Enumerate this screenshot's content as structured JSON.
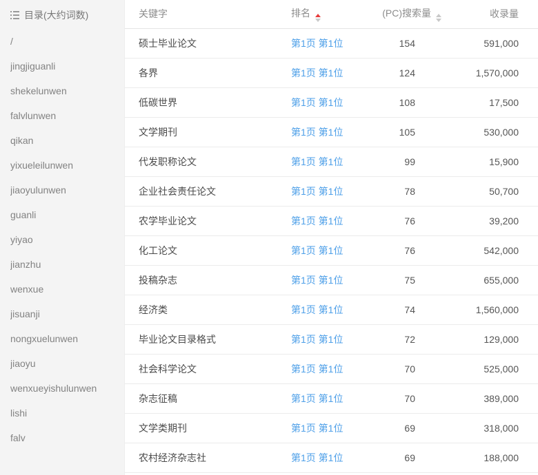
{
  "sidebar": {
    "title": "目录(大约词数)",
    "items": [
      "/",
      "jingjiguanli",
      "shekelunwen",
      "falvlunwen",
      "qikan",
      "yixueleilunwen",
      "jiaoyulunwen",
      "guanli",
      "yiyao",
      "jianzhu",
      "wenxue",
      "jisuanji",
      "nongxuelunwen",
      "jiaoyu",
      "wenxueyishulunwen",
      "lishi",
      "falv"
    ]
  },
  "table": {
    "columns": {
      "keyword": "关键字",
      "rank": "排名",
      "pc_search": "(PC)搜索量",
      "indexed": "收录量"
    },
    "sort": {
      "rank_active": "asc",
      "pc_active": "none"
    },
    "rows": [
      {
        "keyword": "硕士毕业论文",
        "rank": "第1页 第1位",
        "pc": "154",
        "indexed": "591,000"
      },
      {
        "keyword": "各界",
        "rank": "第1页 第1位",
        "pc": "124",
        "indexed": "1,570,000"
      },
      {
        "keyword": "低碳世界",
        "rank": "第1页 第1位",
        "pc": "108",
        "indexed": "17,500"
      },
      {
        "keyword": "文学期刊",
        "rank": "第1页 第1位",
        "pc": "105",
        "indexed": "530,000"
      },
      {
        "keyword": "代发职称论文",
        "rank": "第1页 第1位",
        "pc": "99",
        "indexed": "15,900"
      },
      {
        "keyword": "企业社会责任论文",
        "rank": "第1页 第1位",
        "pc": "78",
        "indexed": "50,700"
      },
      {
        "keyword": "农学毕业论文",
        "rank": "第1页 第1位",
        "pc": "76",
        "indexed": "39,200"
      },
      {
        "keyword": "化工论文",
        "rank": "第1页 第1位",
        "pc": "76",
        "indexed": "542,000"
      },
      {
        "keyword": "投稿杂志",
        "rank": "第1页 第1位",
        "pc": "75",
        "indexed": "655,000"
      },
      {
        "keyword": "经济类",
        "rank": "第1页 第1位",
        "pc": "74",
        "indexed": "1,560,000"
      },
      {
        "keyword": "毕业论文目录格式",
        "rank": "第1页 第1位",
        "pc": "72",
        "indexed": "129,000"
      },
      {
        "keyword": "社会科学论文",
        "rank": "第1页 第1位",
        "pc": "70",
        "indexed": "525,000"
      },
      {
        "keyword": "杂志征稿",
        "rank": "第1页 第1位",
        "pc": "70",
        "indexed": "389,000"
      },
      {
        "keyword": "文学类期刊",
        "rank": "第1页 第1位",
        "pc": "69",
        "indexed": "318,000"
      },
      {
        "keyword": "农村经济杂志社",
        "rank": "第1页 第1位",
        "pc": "69",
        "indexed": "188,000"
      }
    ]
  },
  "colors": {
    "link": "#4d9fe8",
    "sort_active": "#e73c3c",
    "sidebar_bg": "#f4f4f4"
  }
}
